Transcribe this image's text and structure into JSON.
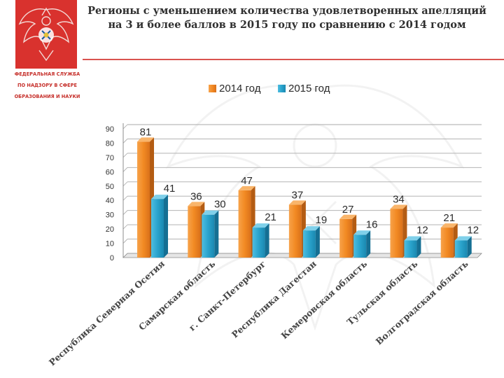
{
  "header": {
    "title_line1": "Регионы с уменьшением количества удовлетворенных апелляций",
    "title_line2": "на 3 и более баллов в 2015 году по сравнению с 2014 годом"
  },
  "agency": {
    "line1": "ФЕДЕРАЛЬНАЯ СЛУЖБА",
    "line2": "ПО НАДЗОРУ В СФЕРЕ",
    "line3": "ОБРАЗОВАНИЯ И НАУКИ"
  },
  "colors": {
    "brand_red": "#d9322e",
    "series_2014": "#f0892a",
    "series_2015": "#2fa7cf"
  },
  "chart_data": {
    "type": "bar",
    "title": "Регионы с уменьшением количества удовлетворенных апелляций на 3 и более баллов в 2015 году по сравнению с 2014 годом",
    "categories": [
      "Республика Северная Осетия",
      "Самарская область",
      "г. Санкт-Петербург",
      "Республика Дагестан",
      "Кемеровская область",
      "Тульская область",
      "Волгоградская область"
    ],
    "series": [
      {
        "name": "2014 год",
        "values": [
          81,
          36,
          47,
          37,
          27,
          34,
          21
        ]
      },
      {
        "name": "2015 год",
        "values": [
          41,
          30,
          21,
          19,
          16,
          12,
          12
        ]
      }
    ],
    "ylim": [
      0,
      90
    ],
    "yticks": [
      0,
      10,
      20,
      30,
      40,
      50,
      60,
      70,
      80,
      90
    ],
    "grid": true,
    "legend_position": "top-center",
    "xlabel": "",
    "ylabel": ""
  }
}
